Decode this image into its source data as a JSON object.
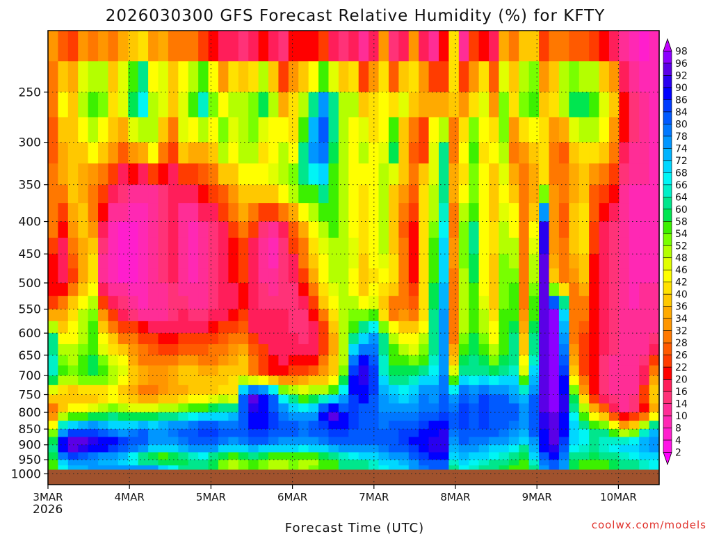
{
  "chart_data": {
    "type": "heatmap",
    "title": "2026030300 GFS Forecast Relative Humidity (%) for KFTY",
    "xlabel": "Forecast Time (UTC)",
    "ylabel": "",
    "credit": "coolwx.com/models",
    "x_axis": {
      "ticks": [
        "3MAR",
        "4MAR",
        "5MAR",
        "6MAR",
        "7MAR",
        "8MAR",
        "9MAR",
        "10MAR"
      ],
      "first_tick_year": "2026",
      "range_days": [
        0,
        7.5
      ]
    },
    "y_axis": {
      "unit": "hPa",
      "scale": "log-pressure",
      "inverted": true,
      "ticks": [
        250,
        300,
        350,
        400,
        450,
        500,
        550,
        600,
        650,
        700,
        750,
        800,
        850,
        900,
        950,
        1000
      ],
      "range": [
        200,
        1040
      ],
      "surface_pressure": 985
    },
    "grid": "dotted",
    "colorbar": {
      "placement": "right",
      "levels": [
        2,
        4,
        8,
        10,
        14,
        16,
        20,
        22,
        26,
        28,
        32,
        34,
        36,
        40,
        42,
        46,
        48,
        52,
        54,
        58,
        60,
        64,
        66,
        68,
        72,
        74,
        78,
        80,
        84,
        86,
        90,
        92,
        96,
        98
      ],
      "colors": [
        "#ff00ff",
        "#ff14e6",
        "#ff1ecd",
        "#ff28b4",
        "#ff2d96",
        "#ff3278",
        "#ff1e5a",
        "#ff0000",
        "#ff3c00",
        "#ff5a00",
        "#ff7800",
        "#ff9600",
        "#ffaa00",
        "#ffc800",
        "#ffe100",
        "#ffff00",
        "#e1ff00",
        "#b4ff00",
        "#78ff00",
        "#3cf000",
        "#00e650",
        "#00e68c",
        "#00f0c8",
        "#00f5f5",
        "#00d7ff",
        "#00b4ff",
        "#0096ff",
        "#0078ff",
        "#005aff",
        "#003cff",
        "#0000ff",
        "#2800f0",
        "#5a00e6",
        "#8c00ff",
        "#c000ff"
      ]
    },
    "fields": [
      {
        "pressure": 200,
        "rh": [
          35,
          22,
          20,
          25,
          20,
          24,
          26,
          28,
          26,
          30,
          28,
          30,
          26,
          24,
          22,
          10,
          10,
          8,
          6,
          4,
          4,
          6,
          8,
          10,
          14,
          12,
          10,
          10,
          6,
          4,
          4,
          6,
          8,
          30,
          8,
          6,
          30,
          8,
          4,
          20,
          40,
          8,
          20,
          10,
          14,
          30,
          26,
          30,
          28,
          22,
          26,
          20,
          14,
          14,
          12,
          12,
          12,
          10,
          8,
          6,
          8
        ]
      },
      {
        "pressure": 250,
        "rh": [
          30,
          45,
          40,
          55,
          60,
          56,
          42,
          52,
          66,
          74,
          50,
          52,
          40,
          48,
          60,
          72,
          56,
          40,
          52,
          48,
          52,
          66,
          50,
          30,
          40,
          48,
          56,
          72,
          60,
          48,
          52,
          32,
          40,
          44,
          32,
          50,
          44,
          40,
          30,
          26,
          40,
          28,
          36,
          50,
          30,
          52,
          44,
          58,
          60,
          36,
          44,
          60,
          66,
          64,
          60,
          48,
          40,
          20,
          14,
          10,
          8
        ]
      },
      {
        "pressure": 300,
        "rh": [
          26,
          34,
          36,
          42,
          48,
          40,
          36,
          30,
          40,
          42,
          52,
          34,
          28,
          46,
          40,
          40,
          42,
          56,
          46,
          52,
          54,
          40,
          42,
          48,
          42,
          60,
          78,
          84,
          60,
          50,
          42,
          52,
          42,
          46,
          64,
          36,
          26,
          20,
          46,
          60,
          28,
          46,
          58,
          40,
          44,
          52,
          30,
          34,
          40,
          42,
          30,
          26,
          40,
          44,
          44,
          42,
          30,
          20,
          14,
          10,
          8
        ]
      },
      {
        "pressure": 350,
        "rh": [
          30,
          34,
          38,
          32,
          28,
          26,
          20,
          16,
          14,
          12,
          14,
          16,
          16,
          18,
          20,
          22,
          26,
          30,
          36,
          40,
          42,
          44,
          48,
          52,
          56,
          60,
          62,
          64,
          56,
          50,
          46,
          42,
          44,
          50,
          40,
          36,
          30,
          42,
          48,
          60,
          36,
          40,
          50,
          44,
          38,
          44,
          36,
          30,
          34,
          40,
          32,
          30,
          32,
          34,
          28,
          26,
          22,
          14,
          10,
          10,
          8
        ]
      },
      {
        "pressure": 400,
        "rh": [
          30,
          22,
          34,
          40,
          30,
          20,
          10,
          8,
          8,
          8,
          10,
          14,
          16,
          10,
          10,
          14,
          16,
          20,
          26,
          34,
          24,
          16,
          14,
          20,
          28,
          36,
          44,
          52,
          56,
          50,
          44,
          40,
          44,
          48,
          36,
          26,
          20,
          40,
          52,
          66,
          30,
          52,
          60,
          44,
          40,
          48,
          44,
          32,
          40,
          90,
          32,
          26,
          40,
          42,
          26,
          20,
          16,
          10,
          8,
          8,
          8
        ]
      },
      {
        "pressure": 450,
        "rh": [
          22,
          16,
          28,
          34,
          40,
          12,
          8,
          6,
          6,
          8,
          10,
          14,
          16,
          12,
          8,
          12,
          14,
          16,
          20,
          22,
          16,
          10,
          8,
          14,
          20,
          30,
          40,
          46,
          50,
          52,
          48,
          40,
          46,
          48,
          40,
          30,
          20,
          40,
          56,
          70,
          34,
          54,
          60,
          46,
          40,
          52,
          50,
          30,
          48,
          92,
          34,
          30,
          36,
          40,
          22,
          18,
          14,
          10,
          8,
          8,
          8
        ]
      },
      {
        "pressure": 500,
        "rh": [
          20,
          16,
          24,
          34,
          40,
          12,
          8,
          8,
          8,
          8,
          10,
          14,
          16,
          12,
          10,
          12,
          16,
          16,
          20,
          22,
          16,
          14,
          12,
          14,
          16,
          22,
          34,
          44,
          48,
          50,
          40,
          36,
          40,
          42,
          40,
          30,
          20,
          40,
          58,
          72,
          30,
          50,
          58,
          44,
          38,
          52,
          54,
          30,
          52,
          94,
          38,
          30,
          32,
          36,
          20,
          16,
          14,
          10,
          8,
          10,
          10
        ]
      },
      {
        "pressure": 550,
        "rh": [
          26,
          34,
          40,
          48,
          52,
          30,
          20,
          16,
          12,
          10,
          10,
          12,
          14,
          16,
          14,
          14,
          14,
          16,
          18,
          20,
          16,
          16,
          16,
          16,
          14,
          16,
          22,
          34,
          44,
          50,
          52,
          48,
          50,
          34,
          26,
          30,
          28,
          40,
          60,
          74,
          28,
          50,
          56,
          48,
          40,
          54,
          56,
          32,
          56,
          94,
          96,
          70,
          30,
          30,
          20,
          16,
          14,
          12,
          10,
          10,
          12
        ]
      },
      {
        "pressure": 600,
        "rh": [
          60,
          40,
          44,
          50,
          56,
          40,
          34,
          28,
          26,
          24,
          20,
          18,
          18,
          20,
          20,
          20,
          22,
          24,
          26,
          28,
          20,
          16,
          16,
          16,
          16,
          14,
          16,
          22,
          34,
          48,
          56,
          66,
          72,
          60,
          48,
          42,
          40,
          46,
          62,
          74,
          30,
          52,
          58,
          52,
          44,
          56,
          60,
          36,
          60,
          94,
          96,
          74,
          30,
          26,
          20,
          16,
          14,
          12,
          10,
          12,
          14
        ]
      },
      {
        "pressure": 650,
        "rh": [
          64,
          52,
          50,
          54,
          58,
          50,
          44,
          40,
          34,
          30,
          28,
          26,
          28,
          30,
          30,
          28,
          30,
          32,
          34,
          36,
          30,
          24,
          20,
          18,
          20,
          18,
          18,
          26,
          36,
          50,
          76,
          84,
          82,
          64,
          56,
          52,
          50,
          54,
          64,
          76,
          36,
          56,
          60,
          56,
          50,
          58,
          62,
          40,
          62,
          94,
          96,
          80,
          34,
          24,
          20,
          16,
          14,
          12,
          10,
          14,
          20
        ]
      },
      {
        "pressure": 700,
        "rh": [
          66,
          56,
          54,
          58,
          60,
          58,
          54,
          48,
          40,
          36,
          34,
          34,
          36,
          38,
          38,
          36,
          36,
          38,
          40,
          40,
          32,
          26,
          22,
          22,
          26,
          28,
          30,
          34,
          40,
          54,
          88,
          92,
          86,
          66,
          60,
          60,
          62,
          66,
          68,
          78,
          50,
          66,
          62,
          64,
          62,
          64,
          66,
          50,
          70,
          94,
          96,
          86,
          40,
          26,
          20,
          14,
          12,
          12,
          12,
          18,
          34
        ]
      },
      {
        "pressure": 750,
        "rh": [
          40,
          36,
          34,
          34,
          34,
          36,
          40,
          36,
          32,
          30,
          30,
          32,
          34,
          34,
          36,
          38,
          40,
          42,
          40,
          80,
          94,
          90,
          82,
          64,
          56,
          52,
          54,
          56,
          62,
          70,
          86,
          88,
          84,
          76,
          72,
          70,
          72,
          78,
          76,
          80,
          72,
          82,
          78,
          84,
          80,
          80,
          76,
          70,
          80,
          92,
          96,
          90,
          56,
          36,
          20,
          14,
          12,
          12,
          14,
          24,
          40
        ]
      },
      {
        "pressure": 800,
        "rh": [
          26,
          40,
          46,
          48,
          50,
          52,
          56,
          54,
          52,
          52,
          52,
          54,
          56,
          58,
          60,
          62,
          64,
          66,
          70,
          82,
          90,
          88,
          84,
          78,
          74,
          72,
          74,
          90,
          94,
          88,
          84,
          82,
          80,
          78,
          78,
          76,
          76,
          78,
          80,
          84,
          80,
          86,
          82,
          86,
          84,
          84,
          82,
          78,
          84,
          92,
          96,
          90,
          64,
          54,
          40,
          30,
          20,
          14,
          14,
          20,
          34
        ]
      },
      {
        "pressure": 850,
        "rh": [
          50,
          72,
          80,
          82,
          82,
          80,
          76,
          74,
          78,
          80,
          78,
          78,
          80,
          82,
          84,
          86,
          86,
          84,
          82,
          84,
          86,
          86,
          84,
          82,
          82,
          80,
          82,
          84,
          86,
          86,
          84,
          84,
          82,
          80,
          82,
          84,
          84,
          86,
          88,
          90,
          80,
          84,
          82,
          84,
          82,
          80,
          78,
          76,
          82,
          90,
          94,
          88,
          72,
          66,
          62,
          60,
          50,
          40,
          46,
          60,
          70
        ]
      },
      {
        "pressure": 900,
        "rh": [
          62,
          94,
          96,
          96,
          94,
          92,
          90,
          88,
          84,
          80,
          76,
          74,
          76,
          78,
          80,
          82,
          80,
          78,
          76,
          76,
          78,
          78,
          76,
          74,
          74,
          72,
          74,
          76,
          78,
          82,
          80,
          80,
          80,
          82,
          84,
          86,
          88,
          90,
          92,
          92,
          76,
          80,
          78,
          76,
          74,
          72,
          70,
          66,
          76,
          88,
          92,
          84,
          70,
          66,
          64,
          66,
          70,
          72,
          74,
          76,
          78
        ]
      },
      {
        "pressure": 950,
        "rh": [
          58,
          74,
          80,
          78,
          74,
          72,
          70,
          68,
          62,
          56,
          54,
          52,
          54,
          56,
          60,
          62,
          58,
          52,
          48,
          52,
          56,
          52,
          48,
          50,
          52,
          48,
          50,
          54,
          56,
          60,
          62,
          64,
          66,
          70,
          72,
          74,
          78,
          82,
          84,
          84,
          66,
          70,
          68,
          66,
          64,
          62,
          60,
          56,
          66,
          80,
          84,
          76,
          60,
          58,
          56,
          58,
          60,
          62,
          64,
          66,
          68
        ]
      },
      {
        "pressure": 990,
        "rh": [
          54,
          64,
          70,
          72,
          74,
          76,
          78,
          80,
          82,
          84,
          82,
          76,
          70,
          66,
          62,
          60,
          58,
          54,
          52,
          54,
          56,
          54,
          50,
          52,
          54,
          52,
          54,
          56,
          58,
          60,
          62,
          62,
          64,
          66,
          68,
          70,
          74,
          78,
          80,
          82,
          62,
          66,
          64,
          62,
          60,
          58,
          56,
          54,
          62,
          76,
          82,
          74,
          58,
          56,
          54,
          56,
          58,
          60,
          62,
          64,
          66
        ]
      }
    ]
  }
}
